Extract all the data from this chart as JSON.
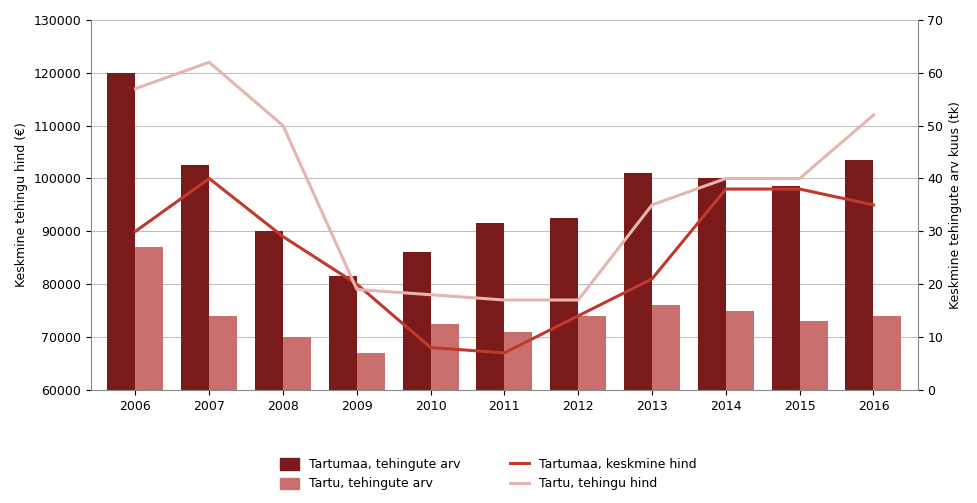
{
  "years": [
    2006,
    2007,
    2008,
    2009,
    2010,
    2011,
    2012,
    2013,
    2014,
    2015,
    2016
  ],
  "tartumaa_tehingute_arv": [
    120000,
    102500,
    90000,
    81500,
    86000,
    91500,
    92500,
    101000,
    100000,
    98500,
    103500
  ],
  "tartu_tehingute_arv": [
    87000,
    74000,
    70000,
    67000,
    72500,
    71000,
    74000,
    76000,
    75000,
    73000,
    74000
  ],
  "tartumaa_keskmine_hind": [
    30,
    40,
    29,
    20,
    8,
    7,
    14,
    21,
    38,
    38,
    35
  ],
  "tartu_tehingu_hind": [
    57,
    62,
    50,
    19,
    18,
    17,
    17,
    35,
    40,
    40,
    52
  ],
  "bar_color_tartumaa": "#7B1A1A",
  "bar_color_tartu": "#C9706E",
  "line_color_tartumaa": "#C0392B",
  "line_color_tartu": "#E8B4B0",
  "ylabel_left": "Keskmine tehingu hind (€)",
  "ylabel_right": "Keskmine tehingute arv kuus (tk)",
  "ylim_left": [
    60000,
    130000
  ],
  "ylim_right": [
    0,
    70
  ],
  "yticks_left": [
    60000,
    70000,
    80000,
    90000,
    100000,
    110000,
    120000,
    130000
  ],
  "yticks_right": [
    0,
    10,
    20,
    30,
    40,
    50,
    60,
    70
  ],
  "legend_labels": [
    "Tartumaa, tehingute arv",
    "Tartu, tehingute arv",
    "Tartumaa, keskmine hind",
    "Tartu, tehingu hind"
  ],
  "bar_width": 0.38,
  "figsize": [
    9.77,
    5.03
  ],
  "dpi": 100,
  "bg_color": "#FFFFFF",
  "grid_color": "#C0C0C0"
}
